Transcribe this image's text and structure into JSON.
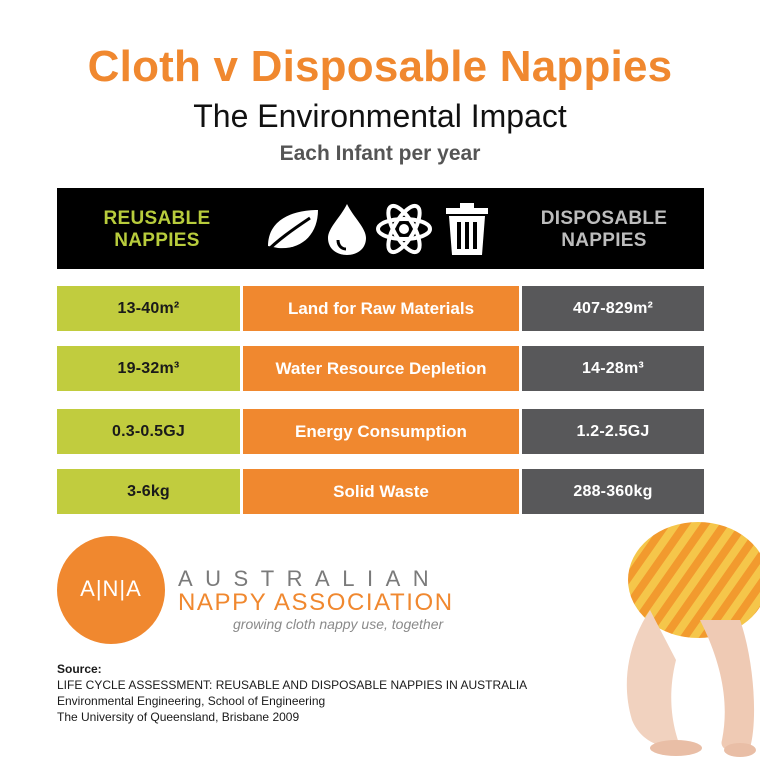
{
  "header": {
    "title": "Cloth v Disposable Nappies",
    "subtitle": "The Environmental Impact",
    "subsubtitle": "Each Infant per year"
  },
  "table": {
    "left_header": [
      "REUSABLE",
      "NAPPIES"
    ],
    "right_header": [
      "DISPOSABLE",
      "NAPPIES"
    ],
    "icons": [
      "leaf-icon",
      "water-drop-icon",
      "atom-icon",
      "trash-bin-icon"
    ],
    "rows": [
      {
        "reusable": "13-40m²",
        "category": "Land for Raw Materials",
        "disposable": "407-829m²"
      },
      {
        "reusable": "19-32m³",
        "category": "Water Resource Depletion",
        "disposable": "14-28m³"
      },
      {
        "reusable": "0.3-0.5GJ",
        "category": "Energy Consumption",
        "disposable": "1.2-2.5GJ"
      },
      {
        "reusable": "3-6kg",
        "category": "Solid Waste",
        "disposable": "288-360kg"
      }
    ],
    "colors": {
      "reusable": "#c1cc3e",
      "category": "#f0882f",
      "disposable": "#58585a"
    }
  },
  "logo": {
    "circle_text": "A|N|A",
    "line1": "AUSTRALIAN",
    "line2": "NAPPY ASSOCIATION",
    "tagline": "growing cloth nappy use, together"
  },
  "source": {
    "label": "Source:",
    "lines": [
      "LIFE CYCLE ASSESSMENT: REUSABLE AND DISPOSABLE NAPPIES IN AUSTRALIA",
      "Environmental Engineering, School of Engineering",
      "The University of Queensland, Brisbane 2009"
    ]
  }
}
